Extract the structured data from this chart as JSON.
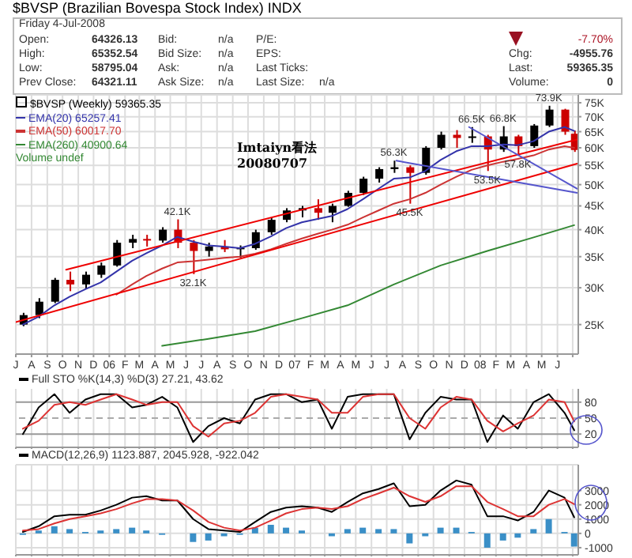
{
  "chart_data": [
    {
      "type": "candlestick",
      "title": "$BVSP (Brazilian Bovespa Stock Index) INDX",
      "legend_title": "$BVSP (Weekly) 59365.35",
      "legend": "top left",
      "log": true,
      "grid": true,
      "x": [
        "2005-07-15",
        "2005-08-15",
        "2005-09-15",
        "2005-10-15",
        "2005-11-15",
        "2005-12-15",
        "2006-01-15",
        "2006-02-15",
        "2006-03-15",
        "2006-04-15",
        "2006-05-15",
        "2006-06-15",
        "2006-07-15",
        "2006-08-15",
        "2006-09-15",
        "2006-10-15",
        "2006-11-15",
        "2006-12-15",
        "2007-01-15",
        "2007-02-15",
        "2007-03-15",
        "2007-04-15",
        "2007-05-15",
        "2007-06-15",
        "2007-07-15",
        "2007-08-15",
        "2007-09-15",
        "2007-10-15",
        "2007-11-15",
        "2007-12-15",
        "2008-01-15",
        "2008-02-15",
        "2008-03-15",
        "2008-04-15",
        "2008-05-15",
        "2008-06-15",
        "2008-07-04"
      ],
      "ohlc": [
        [
          25000,
          26500,
          24800,
          26200
        ],
        [
          26200,
          28500,
          25800,
          28000
        ],
        [
          28000,
          31500,
          27800,
          31200
        ],
        [
          31200,
          32500,
          29500,
          30500
        ],
        [
          30500,
          32500,
          29800,
          32000
        ],
        [
          32000,
          34000,
          31500,
          33500
        ],
        [
          33500,
          38000,
          33300,
          37500
        ],
        [
          37500,
          39000,
          36500,
          38200
        ],
        [
          38200,
          39000,
          36800,
          37900
        ],
        [
          37900,
          40500,
          37500,
          40000
        ],
        [
          40000,
          42100,
          36500,
          37500
        ],
        [
          37500,
          38000,
          32100,
          36000
        ],
        [
          36000,
          37500,
          35000,
          36800
        ],
        [
          36800,
          38000,
          35800,
          36300
        ],
        [
          36300,
          37000,
          34800,
          36500
        ],
        [
          36500,
          40000,
          36200,
          39500
        ],
        [
          39500,
          42500,
          39000,
          42000
        ],
        [
          42000,
          44500,
          41500,
          44000
        ],
        [
          44000,
          45000,
          42500,
          44500
        ],
        [
          44500,
          46500,
          42000,
          43500
        ],
        [
          43500,
          45500,
          41500,
          45000
        ],
        [
          45000,
          48500,
          44800,
          48000
        ],
        [
          48000,
          52000,
          47500,
          51500
        ],
        [
          51500,
          54500,
          50500,
          54000
        ],
        [
          54000,
          56300,
          53000,
          54500
        ],
        [
          54500,
          55000,
          45500,
          53000
        ],
        [
          53000,
          60500,
          52500,
          60000
        ],
        [
          60000,
          65000,
          59500,
          64000
        ],
        [
          64000,
          65500,
          60000,
          63000
        ],
        [
          63000,
          66500,
          61500,
          63500
        ],
        [
          63500,
          64000,
          53500,
          59500
        ],
        [
          59500,
          66800,
          58800,
          63500
        ],
        [
          63500,
          64000,
          57800,
          60500
        ],
        [
          60500,
          67500,
          60000,
          67000
        ],
        [
          67000,
          73900,
          66500,
          72500
        ],
        [
          72500,
          72800,
          64000,
          65000
        ],
        [
          64326.13,
          65352.54,
          58795.04,
          59365.35
        ]
      ],
      "colors": [
        "#000000",
        "#000000",
        "#000000",
        "#cc0000",
        "#000000",
        "#000000",
        "#000000",
        "#000000",
        "#cc0000",
        "#000000",
        "#cc0000",
        "#cc0000",
        "#000000",
        "#cc0000",
        "#000000",
        "#000000",
        "#000000",
        "#000000",
        "#000000",
        "#cc0000",
        "#000000",
        "#000000",
        "#000000",
        "#000000",
        "#000000",
        "#cc0000",
        "#000000",
        "#000000",
        "#cc0000",
        "#000000",
        "#cc0000",
        "#000000",
        "#cc0000",
        "#000000",
        "#000000",
        "#cc0000",
        "#cc0000"
      ],
      "series": [
        {
          "type": "line",
          "name": "EMA(20) 65257.41",
          "color": "#3333aa",
          "values": [
            25000,
            26000,
            27500,
            28700,
            29800,
            30800,
            32500,
            34300,
            35600,
            37000,
            38600,
            37700,
            37000,
            36800,
            36500,
            37300,
            38700,
            40300,
            41500,
            42200,
            42800,
            44300,
            46500,
            49000,
            51500,
            51800,
            53500,
            56500,
            59000,
            60500,
            60500,
            61000,
            60800,
            62000,
            65000,
            66500,
            65257.41
          ]
        },
        {
          "type": "line",
          "name": "EMA(50) 60017.70",
          "color": "#cc3333",
          "values": [
            null,
            null,
            null,
            null,
            null,
            null,
            29000,
            30500,
            31800,
            33000,
            34000,
            34200,
            34500,
            34800,
            35000,
            35500,
            36300,
            37300,
            38300,
            39200,
            40000,
            41000,
            42500,
            44000,
            45500,
            46500,
            48000,
            50000,
            52000,
            53800,
            55000,
            56000,
            56800,
            57800,
            59500,
            60500,
            60017.7
          ]
        },
        {
          "type": "line",
          "name": "EMA(260) 40900.64",
          "color": "#338833",
          "x": [
            "2006-04-15",
            "2006-07-15",
            "2006-10-15",
            "2007-01-15",
            "2007-04-15",
            "2007-07-15",
            "2007-10-15",
            "2008-01-15",
            "2008-04-15",
            "2008-07-04"
          ],
          "values": [
            22500,
            23300,
            24200,
            25800,
            27500,
            30500,
            33500,
            36000,
            38500,
            40900.64
          ]
        },
        {
          "type": "line",
          "color": "#ee0000",
          "x": [
            "2005-07-01",
            "2008-07-10"
          ],
          "values": [
            25300,
            55500
          ]
        },
        {
          "type": "line",
          "color": "#ee0000",
          "x": [
            "2005-10-08",
            "2008-07-10"
          ],
          "values": [
            32800,
            62500
          ]
        },
        {
          "type": "line",
          "color": "#5555cc",
          "x": [
            "2007-07-20",
            "2008-07-10"
          ],
          "values": [
            56300,
            48000
          ]
        },
        {
          "type": "line",
          "color": "#5555cc",
          "x": [
            "2007-12-10",
            "2008-07-10"
          ],
          "values": [
            66500,
            49000
          ]
        }
      ],
      "xlim": [
        "2005-07-01",
        "2008-07-12"
      ],
      "xticks": [
        {
          "value": "2005-07-01",
          "label": "J"
        },
        {
          "value": "2005-08-01",
          "label": "A"
        },
        {
          "value": "2005-09-01",
          "label": "S"
        },
        {
          "value": "2005-10-01",
          "label": "O"
        },
        {
          "value": "2005-11-01",
          "label": "N"
        },
        {
          "value": "2005-12-01",
          "label": "D"
        },
        {
          "value": "2006-01-01",
          "label": "06"
        },
        {
          "value": "2006-02-01",
          "label": "F"
        },
        {
          "value": "2006-03-01",
          "label": "M"
        },
        {
          "value": "2006-04-01",
          "label": "A"
        },
        {
          "value": "2006-05-01",
          "label": "M"
        },
        {
          "value": "2006-06-01",
          "label": "J"
        },
        {
          "value": "2006-07-01",
          "label": "J"
        },
        {
          "value": "2006-08-01",
          "label": "A"
        },
        {
          "value": "2006-09-01",
          "label": "S"
        },
        {
          "value": "2006-10-01",
          "label": "O"
        },
        {
          "value": "2006-11-01",
          "label": "N"
        },
        {
          "value": "2006-12-01",
          "label": "D"
        },
        {
          "value": "2007-01-01",
          "label": "07"
        },
        {
          "value": "2007-02-01",
          "label": "F"
        },
        {
          "value": "2007-03-01",
          "label": "M"
        },
        {
          "value": "2007-04-01",
          "label": "A"
        },
        {
          "value": "2007-05-01",
          "label": "M"
        },
        {
          "value": "2007-06-01",
          "label": "J"
        },
        {
          "value": "2007-07-01",
          "label": "J"
        },
        {
          "value": "2007-08-01",
          "label": "A"
        },
        {
          "value": "2007-09-01",
          "label": "S"
        },
        {
          "value": "2007-10-01",
          "label": "O"
        },
        {
          "value": "2007-11-01",
          "label": "N"
        },
        {
          "value": "2007-12-01",
          "label": "D"
        },
        {
          "value": "2008-01-01",
          "label": "08"
        },
        {
          "value": "2008-02-01",
          "label": "F"
        },
        {
          "value": "2008-03-01",
          "label": "M"
        },
        {
          "value": "2008-04-01",
          "label": "A"
        },
        {
          "value": "2008-05-01",
          "label": "M"
        },
        {
          "value": "2008-06-01",
          "label": "J"
        },
        {
          "value": "2008-07-01",
          "label": null
        }
      ],
      "ylim": [
        21600,
        78000
      ],
      "yticks": [
        {
          "value": 25000,
          "label": "25K"
        },
        {
          "value": 30000,
          "label": "30K"
        },
        {
          "value": 35000,
          "label": "35K"
        },
        {
          "value": 40000,
          "label": "40K"
        },
        {
          "value": 45000,
          "label": "45K"
        },
        {
          "value": 50000,
          "label": "50K"
        },
        {
          "value": 55000,
          "label": "55K"
        },
        {
          "value": 60000,
          "label": "60K"
        },
        {
          "value": 65000,
          "label": "65K"
        },
        {
          "value": 70000,
          "label": "70K"
        },
        {
          "value": 75000,
          "label": "75K"
        }
      ],
      "annotations": [
        "Friday 4-Jul-2008",
        "Open:",
        "64326.13",
        "Bid:",
        "n/a",
        "P/E:",
        "-7.70%",
        "High:",
        "65352.54",
        "Bid Size:",
        "n/a",
        "EPS:",
        "Chg:",
        "-4955.76",
        "Low:",
        "58795.04",
        "Ask:",
        "n/a",
        "Last Ticks:",
        "Last:",
        "59365.35",
        "Prev Close:",
        "64321.11",
        "Ask Size:",
        "n/a",
        "Last Size:",
        "n/a",
        "Volume:",
        "0",
        "Volume undef",
        "Imtaiyn看法 20080707",
        {
          "text": "42.1K",
          "x": "2006-05-15",
          "y": 42100
        },
        {
          "text": "32.1K",
          "x": "2006-06-15",
          "y": 32100
        },
        {
          "text": "56.3K",
          "x": "2007-07-15",
          "y": 56300
        },
        {
          "text": "45.5K",
          "x": "2007-08-15",
          "y": 45500
        },
        {
          "text": "66.5K",
          "x": "2007-12-15",
          "y": 66500
        },
        {
          "text": "53.5K",
          "x": "2008-01-15",
          "y": 53500
        },
        {
          "text": "66.8K",
          "x": "2008-02-15",
          "y": 66800
        },
        {
          "text": "57.8K",
          "x": "2008-03-15",
          "y": 57800
        },
        {
          "text": "73.9K",
          "x": "2008-05-15",
          "y": 73900
        }
      ]
    },
    {
      "type": "line",
      "title": "Full STO %K(14,3) %D(3) 27.21, 43.62",
      "grid": "x",
      "tick_labels": "y",
      "x": [
        "2005-07-15",
        "2005-08-15",
        "2005-09-15",
        "2005-10-15",
        "2005-11-15",
        "2005-12-15",
        "2006-01-15",
        "2006-02-15",
        "2006-03-15",
        "2006-04-15",
        "2006-05-15",
        "2006-06-15",
        "2006-07-15",
        "2006-08-15",
        "2006-09-15",
        "2006-10-15",
        "2006-11-15",
        "2006-12-15",
        "2007-01-15",
        "2007-02-15",
        "2007-03-15",
        "2007-04-15",
        "2007-05-15",
        "2007-06-15",
        "2007-07-15",
        "2007-08-15",
        "2007-09-15",
        "2007-10-15",
        "2007-11-15",
        "2007-12-15",
        "2008-01-15",
        "2008-02-15",
        "2008-03-15",
        "2008-04-15",
        "2008-05-15",
        "2008-06-15",
        "2008-07-04"
      ],
      "series": [
        {
          "color": "#000000",
          "values": [
            20,
            70,
            95,
            60,
            85,
            95,
            95,
            70,
            75,
            90,
            70,
            5,
            35,
            50,
            40,
            85,
            95,
            95,
            80,
            85,
            30,
            90,
            95,
            95,
            95,
            10,
            60,
            90,
            85,
            85,
            5,
            55,
            30,
            80,
            95,
            60,
            27.21
          ]
        },
        {
          "color": "#dd3333",
          "values": [
            30,
            45,
            75,
            80,
            75,
            85,
            95,
            85,
            75,
            80,
            80,
            35,
            15,
            40,
            45,
            60,
            90,
            95,
            90,
            85,
            60,
            60,
            90,
            95,
            95,
            50,
            30,
            70,
            90,
            85,
            45,
            25,
            40,
            55,
            85,
            80,
            43.62
          ]
        }
      ],
      "xlim": [
        "2005-07-01",
        "2008-07-12"
      ],
      "xticks": [
        {
          "value": "2005-07-01",
          "label": null
        },
        {
          "value": "2005-08-01",
          "label": null
        },
        {
          "value": "2005-09-01",
          "label": null
        },
        {
          "value": "2005-10-01",
          "label": null
        },
        {
          "value": "2005-11-01",
          "label": null
        },
        {
          "value": "2005-12-01",
          "label": null
        },
        {
          "value": "2006-01-01",
          "label": null
        },
        {
          "value": "2006-02-01",
          "label": null
        },
        {
          "value": "2006-03-01",
          "label": null
        },
        {
          "value": "2006-04-01",
          "label": null
        },
        {
          "value": "2006-05-01",
          "label": null
        },
        {
          "value": "2006-06-01",
          "label": null
        },
        {
          "value": "2006-07-01",
          "label": null
        },
        {
          "value": "2006-08-01",
          "label": null
        },
        {
          "value": "2006-09-01",
          "label": null
        },
        {
          "value": "2006-10-01",
          "label": null
        },
        {
          "value": "2006-11-01",
          "label": null
        },
        {
          "value": "2006-12-01",
          "label": null
        },
        {
          "value": "2007-01-01",
          "label": null
        },
        {
          "value": "2007-02-01",
          "label": null
        },
        {
          "value": "2007-03-01",
          "label": null
        },
        {
          "value": "2007-04-01",
          "label": null
        },
        {
          "value": "2007-05-01",
          "label": null
        },
        {
          "value": "2007-06-01",
          "label": null
        },
        {
          "value": "2007-07-01",
          "label": null
        },
        {
          "value": "2007-08-01",
          "label": null
        },
        {
          "value": "2007-09-01",
          "label": null
        },
        {
          "value": "2007-10-01",
          "label": null
        },
        {
          "value": "2007-11-01",
          "label": null
        },
        {
          "value": "2007-12-01",
          "label": null
        },
        {
          "value": "2008-01-01",
          "label": null
        },
        {
          "value": "2008-02-01",
          "label": null
        },
        {
          "value": "2008-03-01",
          "label": null
        },
        {
          "value": "2008-04-01",
          "label": null
        },
        {
          "value": "2008-05-01",
          "label": null
        },
        {
          "value": "2008-06-01",
          "label": null
        },
        {
          "value": "2008-07-01",
          "label": null
        }
      ],
      "ylim": [
        -5,
        105
      ],
      "yticks": [
        20,
        50,
        80
      ],
      "ref_lines": [
        {
          "axis": "y",
          "value": 80,
          "color": "#999999",
          "line_style": "solid"
        },
        {
          "axis": "y",
          "value": 50,
          "color": "#aaaaaa",
          "line_style": "dashed"
        },
        {
          "axis": "y",
          "value": 20,
          "color": "#999999",
          "line_style": "solid"
        }
      ]
    },
    {
      "type": "line",
      "title": "MACD(12,26,9) 1123.887, 2045.928, -922.042",
      "grid": true,
      "tick_labels": "y",
      "x": [
        "2005-07-15",
        "2005-08-15",
        "2005-09-15",
        "2005-10-15",
        "2005-11-15",
        "2005-12-15",
        "2006-01-15",
        "2006-02-15",
        "2006-03-15",
        "2006-04-15",
        "2006-05-15",
        "2006-06-15",
        "2006-07-15",
        "2006-08-15",
        "2006-09-15",
        "2006-10-15",
        "2006-11-15",
        "2006-12-15",
        "2007-01-15",
        "2007-02-15",
        "2007-03-15",
        "2007-04-15",
        "2007-05-15",
        "2007-06-15",
        "2007-07-15",
        "2007-08-15",
        "2007-09-15",
        "2007-10-15",
        "2007-11-15",
        "2007-12-15",
        "2008-01-15",
        "2008-02-15",
        "2008-03-15",
        "2008-04-15",
        "2008-05-15",
        "2008-06-15",
        "2008-07-04"
      ],
      "series": [
        {
          "type": "bar",
          "color": "#3a8fc7",
          "values": [
            -100,
            200,
            500,
            300,
            100,
            200,
            300,
            400,
            200,
            -100,
            0,
            -600,
            -500,
            -200,
            -100,
            400,
            600,
            400,
            200,
            0,
            -200,
            300,
            400,
            300,
            300,
            -700,
            -200,
            400,
            400,
            100,
            -1000,
            -500,
            -300,
            300,
            1000,
            100,
            -922.042
          ]
        },
        {
          "type": "line",
          "color": "#000000",
          "values": [
            100,
            500,
            1200,
            1300,
            1300,
            1600,
            2000,
            2500,
            2600,
            2300,
            2300,
            1000,
            300,
            200,
            100,
            800,
            1500,
            1800,
            1900,
            1800,
            1500,
            2200,
            2800,
            3100,
            3500,
            1900,
            2000,
            3000,
            3700,
            3400,
            1200,
            1200,
            900,
            1500,
            3000,
            2500,
            1123.887
          ]
        },
        {
          "type": "line",
          "color": "#dd3333",
          "values": [
            200,
            300,
            700,
            1000,
            1200,
            1400,
            1700,
            2100,
            2400,
            2400,
            2300,
            1600,
            800,
            400,
            200,
            400,
            900,
            1400,
            1700,
            1800,
            1700,
            1900,
            2400,
            2800,
            3200,
            2600,
            2200,
            2600,
            3300,
            3300,
            2200,
            1700,
            1200,
            1200,
            2000,
            2400,
            2045.928
          ]
        }
      ],
      "xlim": [
        "2005-07-01",
        "2008-07-12"
      ],
      "xticks": [
        {
          "value": "2005-07-01",
          "label": null
        },
        {
          "value": "2005-08-01",
          "label": null
        },
        {
          "value": "2005-09-01",
          "label": null
        },
        {
          "value": "2005-10-01",
          "label": null
        },
        {
          "value": "2005-11-01",
          "label": null
        },
        {
          "value": "2005-12-01",
          "label": null
        },
        {
          "value": "2006-01-01",
          "label": null
        },
        {
          "value": "2006-02-01",
          "label": null
        },
        {
          "value": "2006-03-01",
          "label": null
        },
        {
          "value": "2006-04-01",
          "label": null
        },
        {
          "value": "2006-05-01",
          "label": null
        },
        {
          "value": "2006-06-01",
          "label": null
        },
        {
          "value": "2006-07-01",
          "label": null
        },
        {
          "value": "2006-08-01",
          "label": null
        },
        {
          "value": "2006-09-01",
          "label": null
        },
        {
          "value": "2006-10-01",
          "label": null
        },
        {
          "value": "2006-11-01",
          "label": null
        },
        {
          "value": "2006-12-01",
          "label": null
        },
        {
          "value": "2007-01-01",
          "label": null
        },
        {
          "value": "2007-02-01",
          "label": null
        },
        {
          "value": "2007-03-01",
          "label": null
        },
        {
          "value": "2007-04-01",
          "label": null
        },
        {
          "value": "2007-05-01",
          "label": null
        },
        {
          "value": "2007-06-01",
          "label": null
        },
        {
          "value": "2007-07-01",
          "label": null
        },
        {
          "value": "2007-08-01",
          "label": null
        },
        {
          "value": "2007-09-01",
          "label": null
        },
        {
          "value": "2007-10-01",
          "label": null
        },
        {
          "value": "2007-11-01",
          "label": null
        },
        {
          "value": "2007-12-01",
          "label": null
        },
        {
          "value": "2008-01-01",
          "label": null
        },
        {
          "value": "2008-02-01",
          "label": null
        },
        {
          "value": "2008-03-01",
          "label": null
        },
        {
          "value": "2008-04-01",
          "label": null
        },
        {
          "value": "2008-05-01",
          "label": null
        },
        {
          "value": "2008-06-01",
          "label": null
        },
        {
          "value": "2008-07-01",
          "label": null
        }
      ],
      "ylim": [
        -1500,
        4800
      ],
      "yticks": [
        -1000,
        0,
        1000,
        2000,
        3000
      ]
    }
  ]
}
